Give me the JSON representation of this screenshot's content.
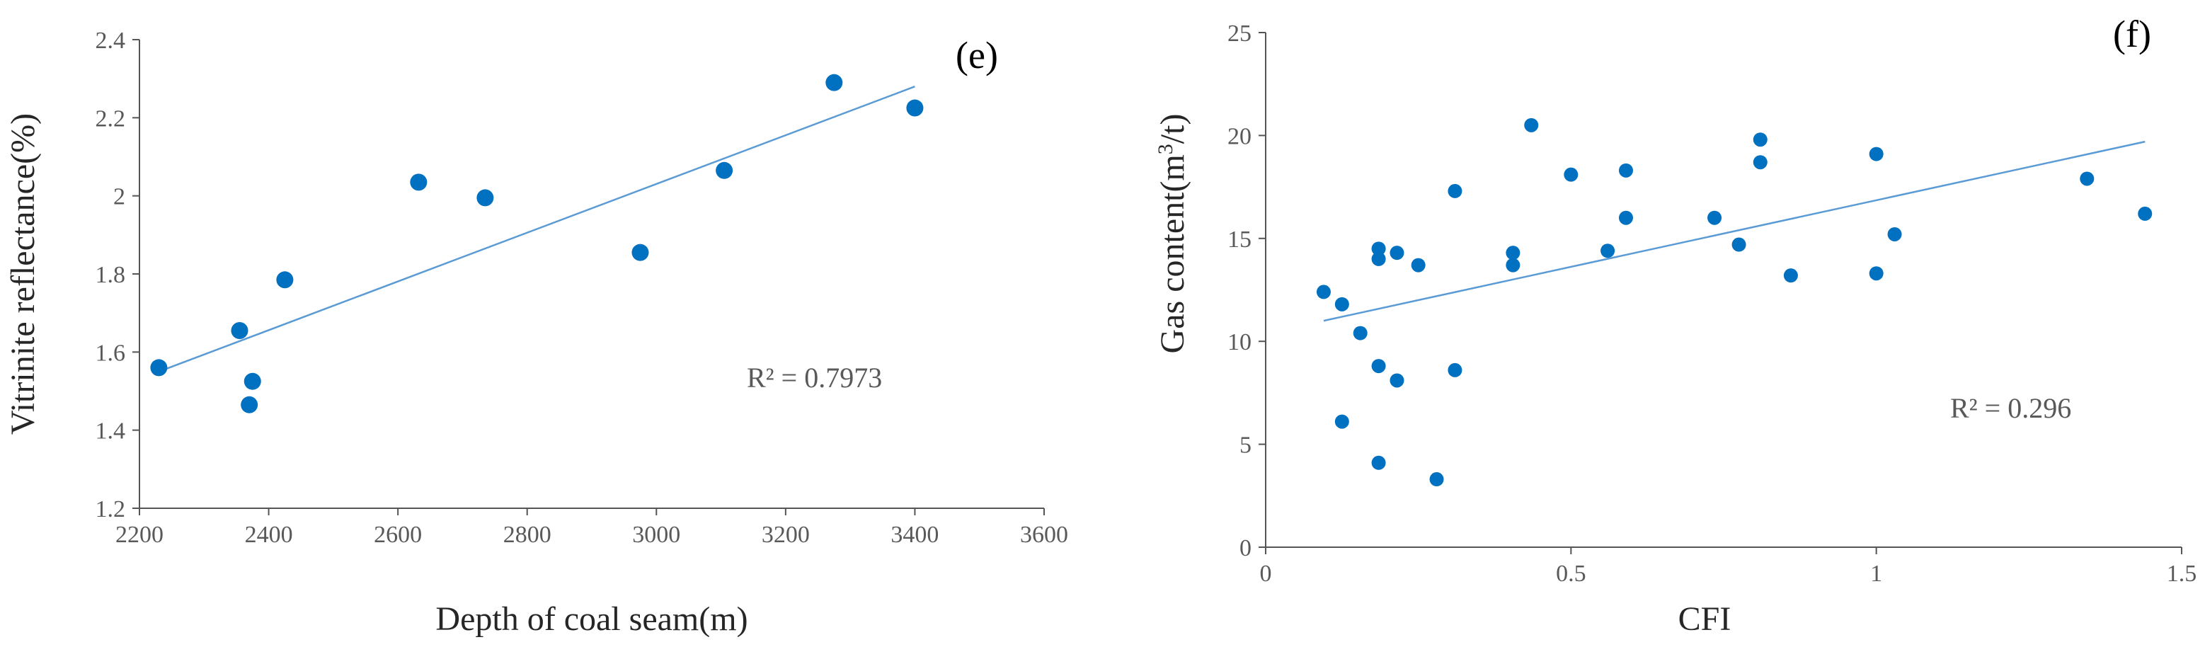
{
  "chart_data": [
    {
      "type": "scatter",
      "panel_label": "(e)",
      "xlabel": "Depth of coal seam(m)",
      "ylabel": "Vitrinite reflectance(%)",
      "xlim": [
        2200,
        3600
      ],
      "ylim": [
        1.2,
        2.4
      ],
      "x_ticks": [
        2200,
        2400,
        2600,
        2800,
        3000,
        3200,
        3400,
        3600
      ],
      "y_ticks": [
        1.2,
        1.4,
        1.6,
        1.8,
        2.0,
        2.2,
        2.4
      ],
      "x_tick_labels": [
        "2200",
        "2400",
        "2600",
        "2800",
        "3000",
        "3200",
        "3400",
        "3600"
      ],
      "y_tick_labels": [
        "1.2",
        "1.4",
        "1.6",
        "1.8",
        "2",
        "2.2",
        "2.4"
      ],
      "grid": false,
      "marker_color": "#0070C0",
      "trendline_color": "#5B9BD5",
      "points": [
        {
          "x": 2230,
          "y": 1.56
        },
        {
          "x": 2355,
          "y": 1.655
        },
        {
          "x": 2370,
          "y": 1.465
        },
        {
          "x": 2375,
          "y": 1.525
        },
        {
          "x": 2425,
          "y": 1.785
        },
        {
          "x": 2632,
          "y": 2.035
        },
        {
          "x": 2735,
          "y": 1.995
        },
        {
          "x": 2975,
          "y": 1.855
        },
        {
          "x": 3105,
          "y": 2.065
        },
        {
          "x": 3275,
          "y": 2.29
        },
        {
          "x": 3400,
          "y": 2.225
        }
      ],
      "trendline": {
        "x": [
          2230,
          3400
        ],
        "y": [
          1.55,
          2.28
        ]
      },
      "r2_text": "R² = 0.7973"
    },
    {
      "type": "scatter",
      "panel_label": "(f)",
      "xlabel": "CFI",
      "ylabel_prefix": "Gas content(m",
      "ylabel_sup": "3",
      "ylabel_suffix": "/t)",
      "xlim": [
        0,
        1.5
      ],
      "ylim": [
        0,
        25
      ],
      "x_ticks": [
        0,
        0.5,
        1,
        1.5
      ],
      "y_ticks": [
        0,
        5,
        10,
        15,
        20,
        25
      ],
      "x_tick_labels": [
        "0",
        "0.5",
        "1",
        "1.5"
      ],
      "y_tick_labels": [
        "0",
        "5",
        "10",
        "15",
        "20",
        "25"
      ],
      "grid": false,
      "marker_color": "#0070C0",
      "trendline_color": "#5B9BD5",
      "points": [
        {
          "x": 0.095,
          "y": 12.4
        },
        {
          "x": 0.125,
          "y": 11.8
        },
        {
          "x": 0.125,
          "y": 6.1
        },
        {
          "x": 0.155,
          "y": 10.4
        },
        {
          "x": 0.185,
          "y": 14.5
        },
        {
          "x": 0.185,
          "y": 14.0
        },
        {
          "x": 0.185,
          "y": 8.8
        },
        {
          "x": 0.185,
          "y": 4.1
        },
        {
          "x": 0.215,
          "y": 14.3
        },
        {
          "x": 0.215,
          "y": 8.1
        },
        {
          "x": 0.25,
          "y": 13.7
        },
        {
          "x": 0.28,
          "y": 3.3
        },
        {
          "x": 0.31,
          "y": 17.3
        },
        {
          "x": 0.31,
          "y": 8.6
        },
        {
          "x": 0.405,
          "y": 14.3
        },
        {
          "x": 0.405,
          "y": 13.7
        },
        {
          "x": 0.435,
          "y": 20.5
        },
        {
          "x": 0.5,
          "y": 18.1
        },
        {
          "x": 0.56,
          "y": 14.4
        },
        {
          "x": 0.59,
          "y": 18.3
        },
        {
          "x": 0.59,
          "y": 16.0
        },
        {
          "x": 0.735,
          "y": 16.0
        },
        {
          "x": 0.775,
          "y": 14.7
        },
        {
          "x": 0.81,
          "y": 19.8
        },
        {
          "x": 0.81,
          "y": 18.7
        },
        {
          "x": 0.86,
          "y": 13.2
        },
        {
          "x": 1.0,
          "y": 19.1
        },
        {
          "x": 1.0,
          "y": 13.3
        },
        {
          "x": 1.03,
          "y": 15.2
        },
        {
          "x": 1.345,
          "y": 17.9
        },
        {
          "x": 1.44,
          "y": 16.2
        }
      ],
      "trendline": {
        "x": [
          0.095,
          1.44
        ],
        "y": [
          11.0,
          19.7
        ]
      },
      "r2_text": "R² = 0.296"
    }
  ]
}
